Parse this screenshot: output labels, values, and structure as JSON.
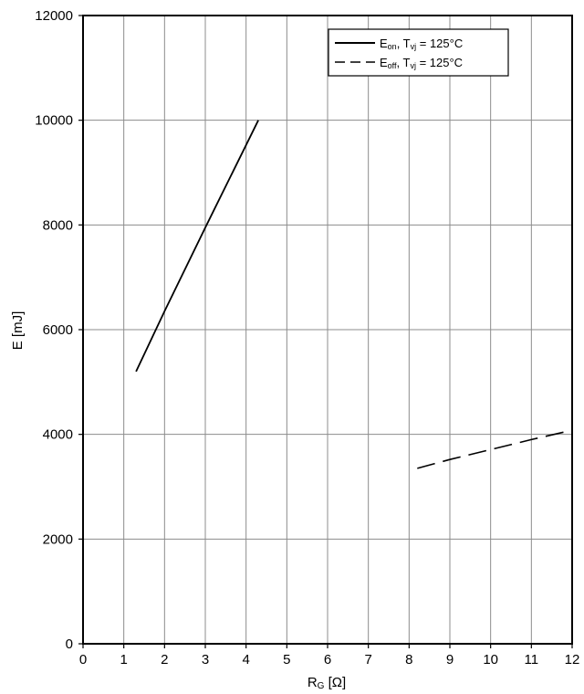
{
  "chart_data": {
    "type": "line",
    "title": "",
    "xlabel": {
      "main": "R",
      "sub": "G",
      "unit": " [Ω]"
    },
    "ylabel": "E [mJ]",
    "xlim": [
      0,
      12
    ],
    "ylim": [
      0,
      12000
    ],
    "x_ticks": [
      0,
      1,
      2,
      3,
      4,
      5,
      6,
      7,
      8,
      9,
      10,
      11,
      12
    ],
    "y_ticks": [
      0,
      2000,
      4000,
      6000,
      8000,
      10000,
      12000
    ],
    "grid": true,
    "legend_position": "top-right",
    "series": [
      {
        "name": "Eon, Tvj = 125°C",
        "label": {
          "e": "E",
          "e_sub": "on",
          "t": ", T",
          "t_sub": "vj",
          "rest": " = 125°C"
        },
        "style": "solid",
        "color": "#000000",
        "x": [
          1.3,
          2.0,
          3.0,
          4.3
        ],
        "y": [
          5200,
          6350,
          7950,
          10000
        ]
      },
      {
        "name": "Eoff, Tvj = 125°C",
        "label": {
          "e": "E",
          "e_sub": "off",
          "t": ", T",
          "t_sub": "vj",
          "rest": " = 125°C"
        },
        "style": "dashed",
        "color": "#000000",
        "x": [
          8.2,
          9.0,
          10.0,
          11.0,
          12.0
        ],
        "y": [
          3350,
          3520,
          3710,
          3900,
          4080
        ]
      }
    ]
  }
}
